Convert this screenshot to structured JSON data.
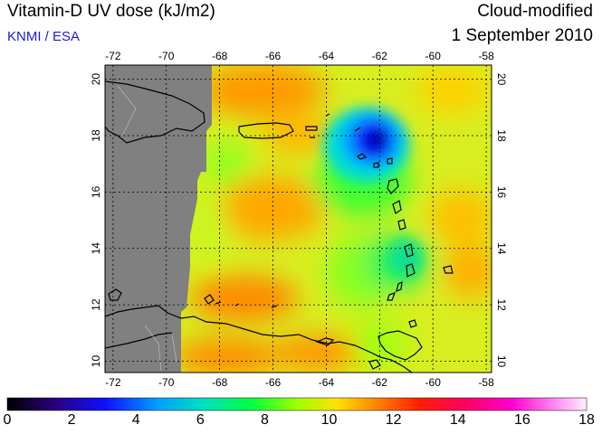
{
  "header": {
    "title": "Vitamin-D UV dose (kJ/m2)",
    "credit": "KNMI / ESA",
    "product": "Cloud-modified",
    "date": "1 September 2010"
  },
  "map": {
    "lon_ticks": [
      "-72",
      "-70",
      "-68",
      "-66",
      "-64",
      "-62",
      "-60",
      "-58"
    ],
    "lat_ticks": [
      "20",
      "18",
      "16",
      "14",
      "12",
      "10"
    ],
    "lon_range": [
      -72.3,
      -57.8
    ],
    "lat_range": [
      9.6,
      20.5
    ],
    "no_data_color": "#808080"
  },
  "colorbar": {
    "labels": [
      "0",
      "2",
      "4",
      "6",
      "8",
      "10",
      "12",
      "14",
      "16",
      "18"
    ],
    "range": [
      0,
      18
    ]
  }
}
